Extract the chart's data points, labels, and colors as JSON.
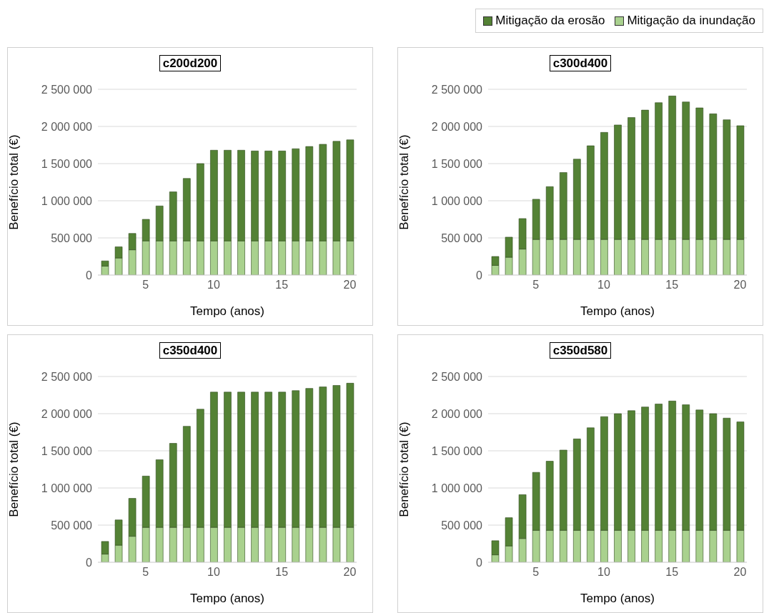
{
  "chart_data": [
    {
      "type": "bar",
      "title": "c200d200",
      "xlabel": "Tempo (anos)",
      "ylabel": "Benefício total (€)",
      "stacked": true,
      "grid": "y",
      "legend": "top right",
      "categories": [
        null,
        null,
        null,
        "5",
        null,
        null,
        null,
        null,
        "10",
        null,
        null,
        null,
        null,
        "15",
        null,
        null,
        null,
        null,
        "20"
      ],
      "ylim": [
        0,
        2500000
      ],
      "yticks": [
        {
          "value": 0,
          "label": "0"
        },
        {
          "value": 500000,
          "label": "500 000"
        },
        {
          "value": 1000000,
          "label": "1 000 000"
        },
        {
          "value": 1500000,
          "label": "1 500 000"
        },
        {
          "value": 2000000,
          "label": "2 000 000"
        },
        {
          "value": 2500000,
          "label": "2 500 000"
        }
      ],
      "series": [
        {
          "name": "Mitigação da inundação",
          "color": "#a9d18e",
          "values": [
            120000,
            230000,
            340000,
            460000,
            460000,
            460000,
            460000,
            460000,
            460000,
            460000,
            460000,
            460000,
            460000,
            460000,
            460000,
            460000,
            460000,
            460000,
            460000
          ]
        },
        {
          "name": "Mitigação da erosão",
          "color": "#548235",
          "values": [
            70000,
            150000,
            220000,
            290000,
            470000,
            660000,
            840000,
            1040000,
            1220000,
            1220000,
            1220000,
            1210000,
            1210000,
            1210000,
            1240000,
            1270000,
            1300000,
            1340000,
            1360000
          ]
        }
      ]
    },
    {
      "type": "bar",
      "title": "c300d400",
      "xlabel": "Tempo (anos)",
      "ylabel": "Benefício total (€)",
      "stacked": true,
      "grid": "y",
      "categories": [
        null,
        null,
        null,
        "5",
        null,
        null,
        null,
        null,
        "10",
        null,
        null,
        null,
        null,
        "15",
        null,
        null,
        null,
        null,
        "20"
      ],
      "ylim": [
        0,
        2500000
      ],
      "yticks": [
        {
          "value": 0,
          "label": "0"
        },
        {
          "value": 500000,
          "label": "500 000"
        },
        {
          "value": 1000000,
          "label": "1 000 000"
        },
        {
          "value": 1500000,
          "label": "1 500 000"
        },
        {
          "value": 2000000,
          "label": "2 000 000"
        },
        {
          "value": 2500000,
          "label": "2 500 000"
        }
      ],
      "series": [
        {
          "color": "#a9d18e",
          "values": [
            130000,
            240000,
            350000,
            480000,
            480000,
            480000,
            480000,
            480000,
            480000,
            480000,
            480000,
            480000,
            480000,
            480000,
            480000,
            480000,
            480000,
            480000,
            480000
          ]
        },
        {
          "color": "#548235",
          "values": [
            120000,
            270000,
            410000,
            540000,
            710000,
            900000,
            1080000,
            1260000,
            1440000,
            1540000,
            1640000,
            1740000,
            1840000,
            1930000,
            1850000,
            1770000,
            1690000,
            1610000,
            1530000
          ]
        }
      ]
    },
    {
      "type": "bar",
      "title": "c350d400",
      "xlabel": "Tempo (anos)",
      "ylabel": "Benefício total (€)",
      "stacked": true,
      "grid": "y",
      "categories": [
        null,
        null,
        null,
        "5",
        null,
        null,
        null,
        null,
        "10",
        null,
        null,
        null,
        null,
        "15",
        null,
        null,
        null,
        null,
        "20"
      ],
      "ylim": [
        0,
        2500000
      ],
      "yticks": [
        {
          "value": 0,
          "label": "0"
        },
        {
          "value": 500000,
          "label": "500 000"
        },
        {
          "value": 1000000,
          "label": "1 000 000"
        },
        {
          "value": 1500000,
          "label": "1 500 000"
        },
        {
          "value": 2000000,
          "label": "2 000 000"
        },
        {
          "value": 2500000,
          "label": "2 500 000"
        }
      ],
      "series": [
        {
          "color": "#a9d18e",
          "values": [
            110000,
            230000,
            350000,
            470000,
            470000,
            470000,
            470000,
            470000,
            470000,
            470000,
            470000,
            470000,
            470000,
            470000,
            470000,
            470000,
            470000,
            470000,
            470000
          ]
        },
        {
          "color": "#548235",
          "values": [
            170000,
            340000,
            510000,
            690000,
            910000,
            1130000,
            1360000,
            1590000,
            1820000,
            1820000,
            1820000,
            1820000,
            1820000,
            1820000,
            1840000,
            1870000,
            1890000,
            1910000,
            1940000
          ]
        }
      ]
    },
    {
      "type": "bar",
      "title": "c350d580",
      "xlabel": "Tempo (anos)",
      "ylabel": "Benefício total (€)",
      "stacked": true,
      "grid": "y",
      "categories": [
        null,
        null,
        null,
        "5",
        null,
        null,
        null,
        null,
        "10",
        null,
        null,
        null,
        null,
        "15",
        null,
        null,
        null,
        null,
        "20"
      ],
      "ylim": [
        0,
        2500000
      ],
      "yticks": [
        {
          "value": 0,
          "label": "0"
        },
        {
          "value": 500000,
          "label": "500 000"
        },
        {
          "value": 1000000,
          "label": "1 000 000"
        },
        {
          "value": 1500000,
          "label": "1 500 000"
        },
        {
          "value": 2000000,
          "label": "2 000 000"
        },
        {
          "value": 2500000,
          "label": "2 500 000"
        }
      ],
      "series": [
        {
          "color": "#a9d18e",
          "values": [
            100000,
            220000,
            320000,
            430000,
            430000,
            430000,
            430000,
            430000,
            430000,
            430000,
            430000,
            430000,
            430000,
            430000,
            430000,
            430000,
            430000,
            430000,
            430000
          ]
        },
        {
          "color": "#548235",
          "values": [
            190000,
            380000,
            590000,
            780000,
            930000,
            1080000,
            1230000,
            1380000,
            1530000,
            1570000,
            1610000,
            1660000,
            1700000,
            1740000,
            1690000,
            1620000,
            1570000,
            1510000,
            1460000
          ]
        }
      ]
    }
  ]
}
